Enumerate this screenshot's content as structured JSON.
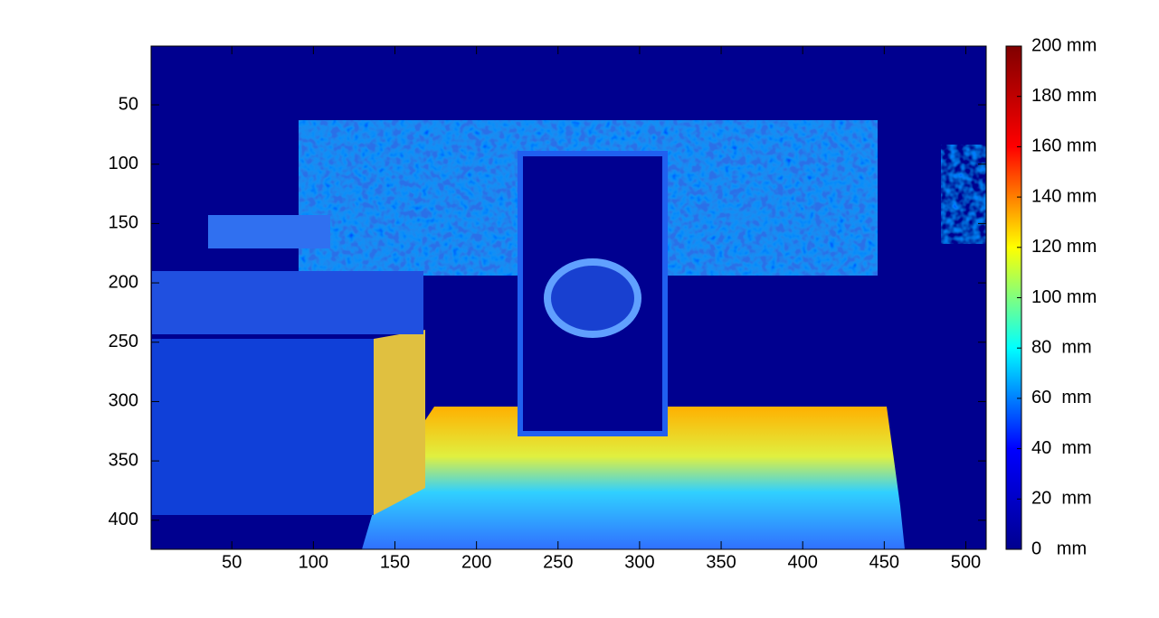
{
  "chart_data": {
    "type": "image",
    "xlim": [
      0.5,
      512.5
    ],
    "xticks": [
      50,
      100,
      150,
      200,
      250,
      300,
      350,
      400,
      450,
      500
    ],
    "ylim": [
      0.5,
      424.5
    ],
    "y_reversed": true,
    "yticks": [
      50,
      100,
      150,
      200,
      250,
      300,
      350,
      400
    ],
    "colormap": [
      "#00008f",
      "#0000ff",
      "#00ffff",
      "#ffff00",
      "#ff0000",
      "#800000"
    ],
    "colorbar": {
      "lim": [
        0,
        200
      ],
      "ticks": [
        {
          "value": 0,
          "label": "0   mm"
        },
        {
          "value": 20,
          "label": "20  mm"
        },
        {
          "value": 40,
          "label": "40  mm"
        },
        {
          "value": 60,
          "label": "60  mm"
        },
        {
          "value": 80,
          "label": "80  mm"
        },
        {
          "value": 100,
          "label": "100 mm"
        },
        {
          "value": 120,
          "label": "120 mm"
        },
        {
          "value": 140,
          "label": "140 mm"
        },
        {
          "value": 160,
          "label": "160 mm"
        },
        {
          "value": 180,
          "label": "180 mm"
        },
        {
          "value": 200,
          "label": "200 mm"
        }
      ]
    }
  }
}
